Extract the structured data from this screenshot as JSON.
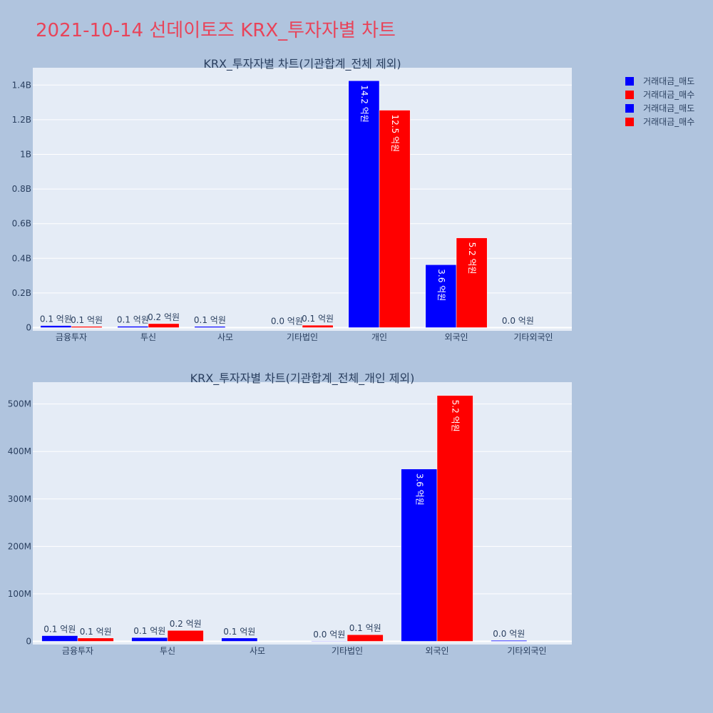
{
  "page_title": "2021-10-14 선데이토즈 KRX_투자자별 차트",
  "colors": {
    "sell": "#0000ff",
    "buy": "#ff0000",
    "plot_bg": "#e5ecf6",
    "page_bg": "#b0c4de"
  },
  "legend": [
    {
      "name": "거래대금_매도",
      "color": "#0000ff"
    },
    {
      "name": "거래대금_매수",
      "color": "#ff0000"
    },
    {
      "name": "거래대금_매도",
      "color": "#0000ff"
    },
    {
      "name": "거래대금_매수",
      "color": "#ff0000"
    }
  ],
  "chart_data": [
    {
      "type": "bar",
      "title": "KRX_투자자별 차트(기관합계_전체 제외)",
      "categories": [
        "금융투자",
        "투신",
        "사모",
        "기타법인",
        "개인",
        "외국인",
        "기타외국인"
      ],
      "series": [
        {
          "name": "거래대금_매도",
          "values": [
            12000000,
            8000000,
            7000000,
            1000000,
            1425000000,
            363000000,
            2000000
          ],
          "labels": [
            "0.1 억원",
            "0.1 억원",
            "0.1 억원",
            "0.0 억원",
            "14.2 억원",
            "3.6 억원",
            "0.0 억원"
          ]
        },
        {
          "name": "거래대금_매수",
          "values": [
            7000000,
            23000000,
            0,
            14000000,
            1255000000,
            518000000,
            0
          ],
          "labels": [
            "0.1 억원",
            "0.2 억원",
            "",
            "0.1 억원",
            "12.5 억원",
            "5.2 억원",
            ""
          ]
        }
      ],
      "yticks": [
        "0",
        "0.2B",
        "0.4B",
        "0.6B",
        "0.8B",
        "1B",
        "1.2B",
        "1.4B"
      ],
      "ylim": [
        0,
        1500000000
      ]
    },
    {
      "type": "bar",
      "title": "KRX_투자자별 차트(기관합계_전체_개인 제외)",
      "categories": [
        "금융투자",
        "투신",
        "사모",
        "기타법인",
        "외국인",
        "기타외국인"
      ],
      "series": [
        {
          "name": "거래대금_매도",
          "values": [
            12000000,
            8000000,
            7000000,
            1000000,
            363000000,
            2000000
          ],
          "labels": [
            "0.1 억원",
            "0.1 억원",
            "0.1 억원",
            "0.0 억원",
            "3.6 억원",
            "0.0 억원"
          ]
        },
        {
          "name": "거래대금_매수",
          "values": [
            7000000,
            23000000,
            0,
            14000000,
            518000000,
            0
          ],
          "labels": [
            "0.1 억원",
            "0.2 억원",
            "",
            "0.1 억원",
            "5.2 억원",
            ""
          ]
        }
      ],
      "yticks": [
        "0",
        "100M",
        "200M",
        "300M",
        "400M",
        "500M"
      ],
      "ylim": [
        0,
        546000000
      ]
    }
  ]
}
